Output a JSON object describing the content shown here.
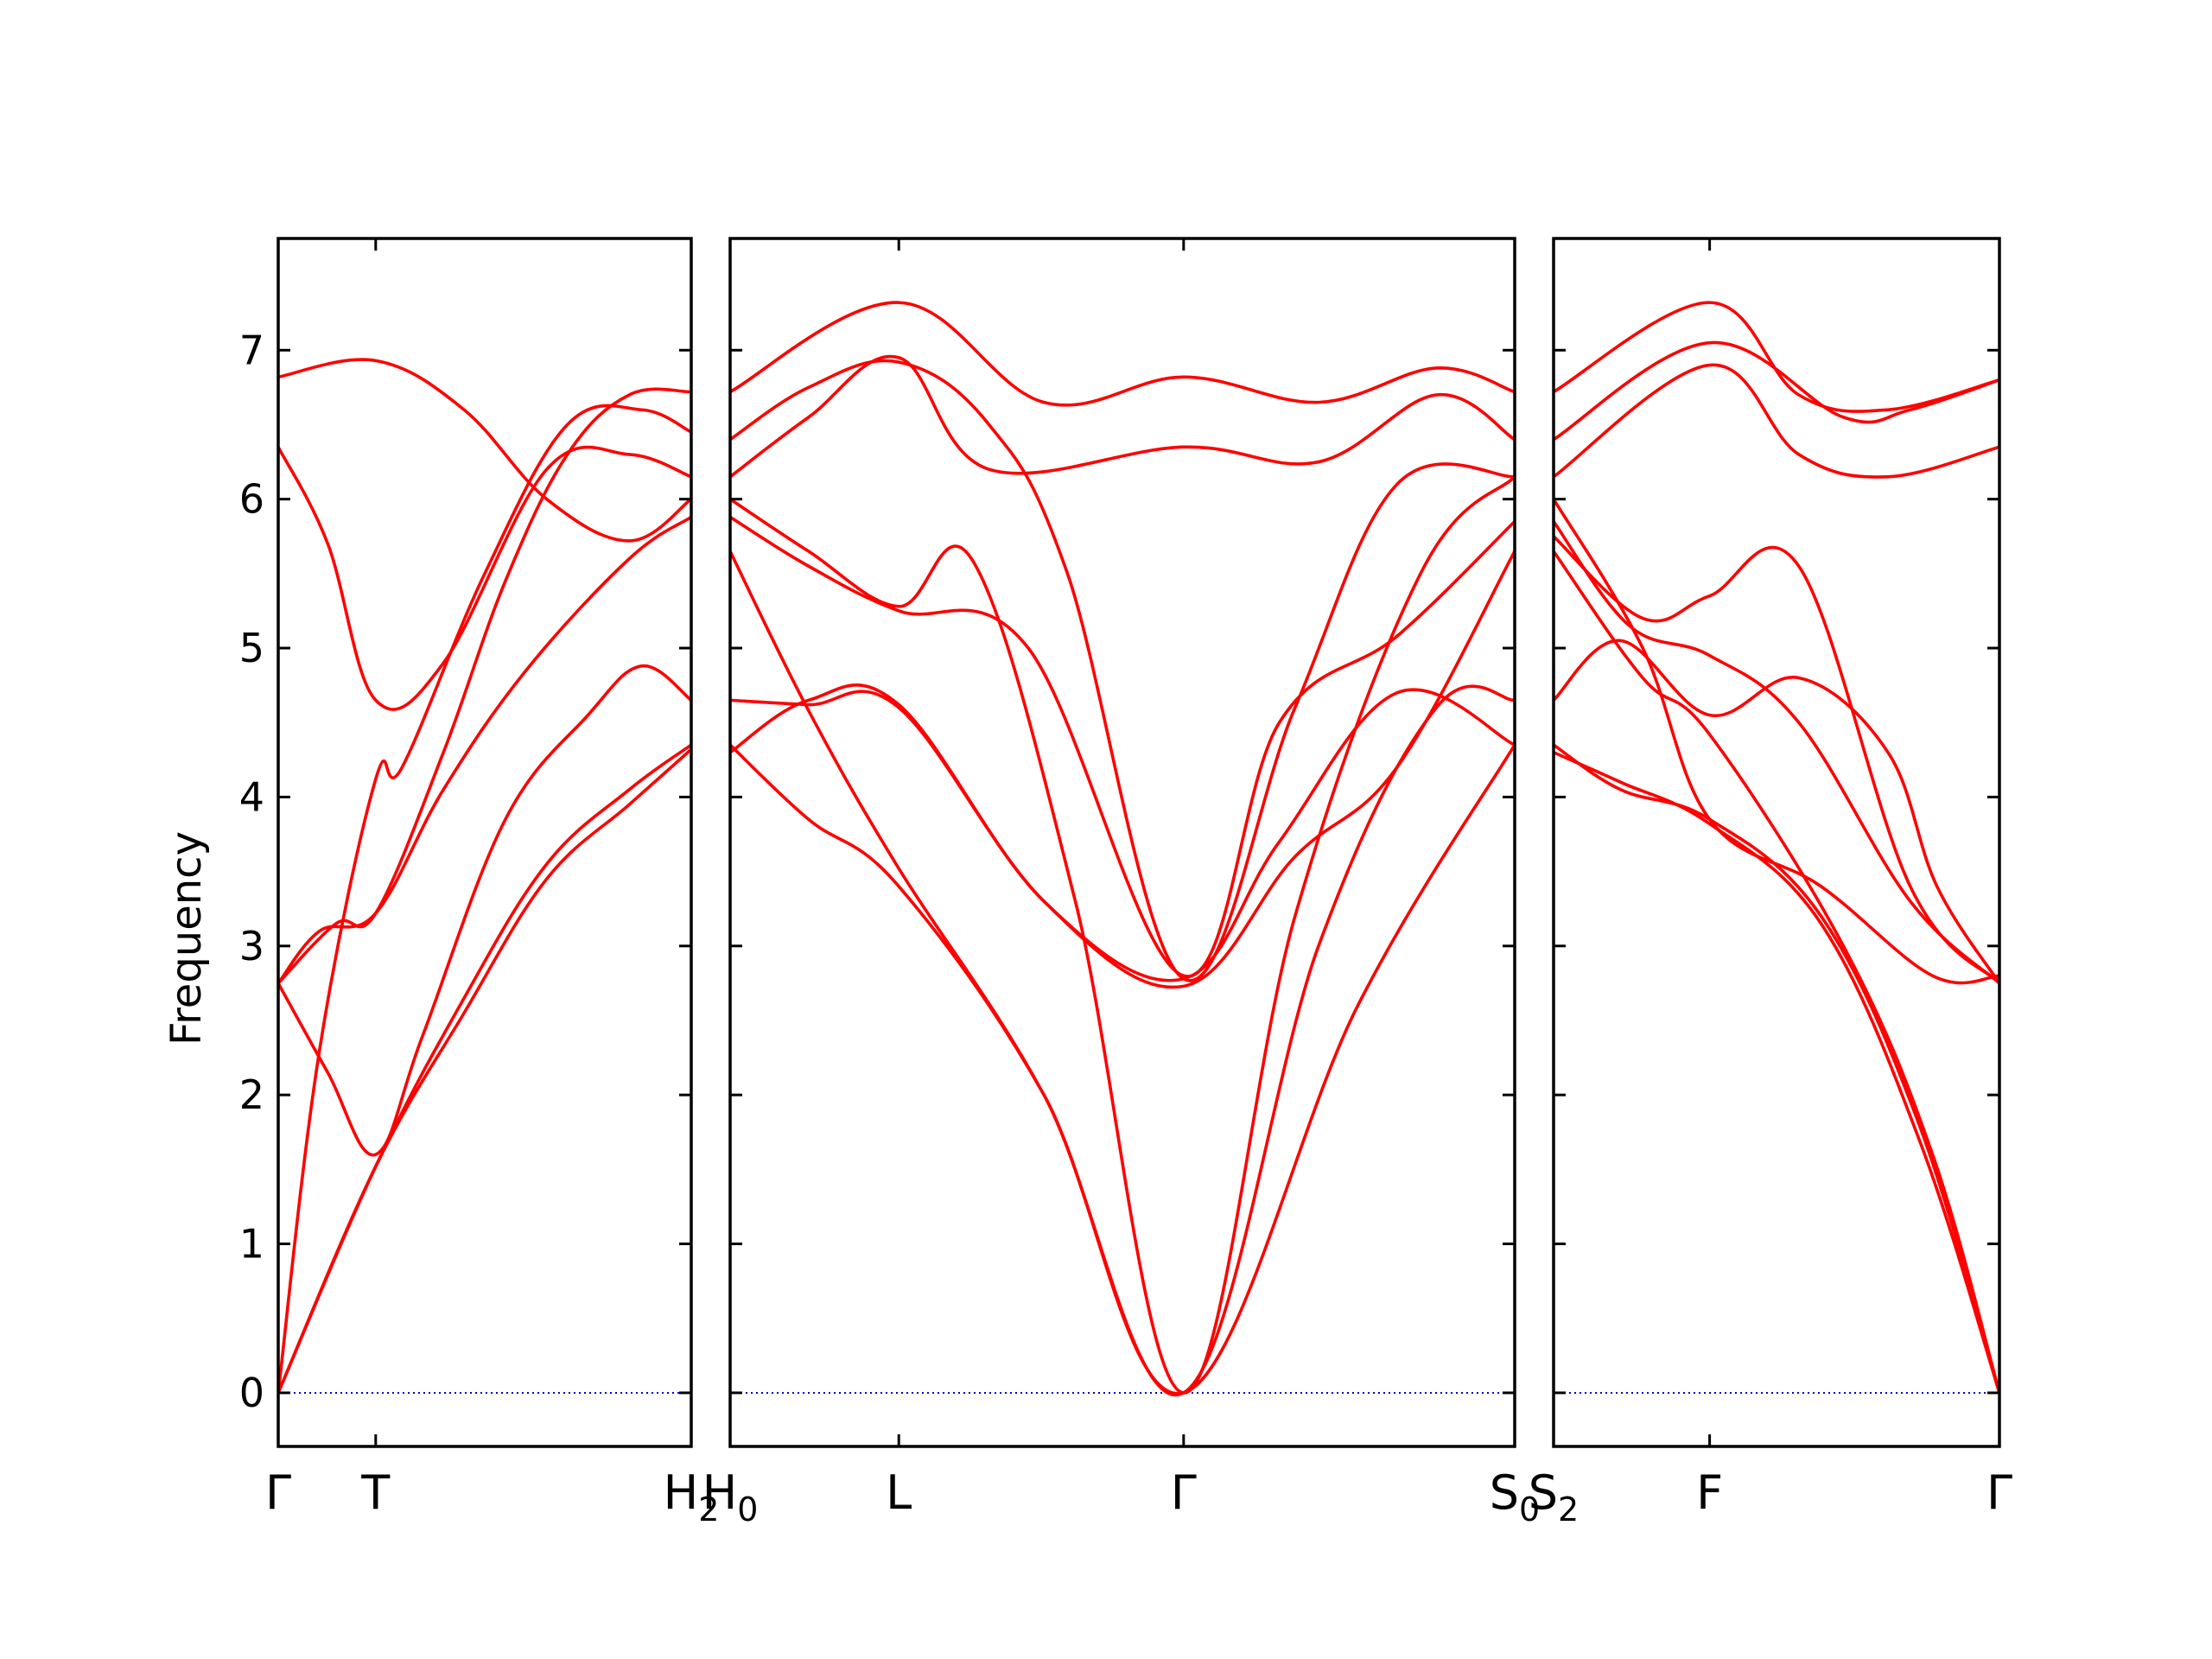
{
  "colors": {
    "band": "#ff0000",
    "zero_line": "#0000cc",
    "axes": "#000000"
  },
  "chart_data": {
    "type": "line",
    "ylabel": "Frequency",
    "ylim": [
      -0.36,
      7.75
    ],
    "yticks": [
      0,
      1,
      2,
      3,
      4,
      5,
      6,
      7
    ],
    "zero_line": true,
    "grid": false,
    "panels": [
      {
        "xrange": [
          0,
          1
        ],
        "labels": [
          {
            "x": 0,
            "text": "Γ",
            "sub": ""
          },
          {
            "x": 0.236,
            "text": "T",
            "sub": ""
          },
          {
            "x": 1,
            "text": "H",
            "sub": "2"
          }
        ],
        "bands": [
          [
            [
              0,
              0
            ],
            [
              0.236,
              1.52
            ],
            [
              0.45,
              2.55
            ],
            [
              0.65,
              3.45
            ],
            [
              0.85,
              3.95
            ],
            [
              1,
              4.32
            ]
          ],
          [
            [
              0,
              0
            ],
            [
              0.236,
              1.52
            ],
            [
              0.45,
              2.65
            ],
            [
              0.65,
              3.55
            ],
            [
              0.85,
              4.05
            ],
            [
              1,
              4.35
            ]
          ],
          [
            [
              0,
              2.75
            ],
            [
              0.12,
              2.15
            ],
            [
              0.236,
              1.6
            ],
            [
              0.35,
              2.4
            ],
            [
              0.55,
              3.85
            ],
            [
              0.75,
              4.55
            ],
            [
              0.88,
              4.88
            ],
            [
              1,
              4.65
            ]
          ],
          [
            [
              0,
              0
            ],
            [
              0.1,
              2.3
            ],
            [
              0.236,
              4.12
            ],
            [
              0.3,
              4.2
            ],
            [
              0.5,
              5.5
            ],
            [
              0.7,
              6.5
            ],
            [
              0.88,
              6.6
            ],
            [
              1,
              6.45
            ]
          ],
          [
            [
              0,
              2.75
            ],
            [
              0.1,
              3.1
            ],
            [
              0.236,
              3.22
            ],
            [
              0.4,
              4.05
            ],
            [
              0.6,
              4.85
            ],
            [
              0.85,
              5.6
            ],
            [
              1,
              5.88
            ]
          ],
          [
            [
              0,
              6.35
            ],
            [
              0.12,
              5.7
            ],
            [
              0.236,
              4.65
            ],
            [
              0.4,
              4.9
            ],
            [
              0.65,
              6.2
            ],
            [
              0.85,
              6.3
            ],
            [
              1,
              6.15
            ]
          ],
          [
            [
              0,
              2.75
            ],
            [
              0.14,
              3.15
            ],
            [
              0.236,
              3.22
            ],
            [
              0.4,
              4.3
            ],
            [
              0.55,
              5.45
            ],
            [
              0.7,
              6.3
            ],
            [
              0.85,
              6.7
            ],
            [
              1,
              6.72
            ]
          ],
          [
            [
              0,
              6.82
            ],
            [
              0.236,
              6.93
            ],
            [
              0.45,
              6.6
            ],
            [
              0.65,
              6.0
            ],
            [
              0.85,
              5.72
            ],
            [
              1,
              6.0
            ]
          ]
        ]
      },
      {
        "xrange": [
          0,
          1
        ],
        "labels": [
          {
            "x": 0,
            "text": "H",
            "sub": "0"
          },
          {
            "x": 0.215,
            "text": "L",
            "sub": ""
          },
          {
            "x": 0.578,
            "text": "Γ",
            "sub": ""
          },
          {
            "x": 1,
            "text": "S",
            "sub": "0"
          }
        ],
        "bands": [
          [
            [
              0,
              4.35
            ],
            [
              0.1,
              3.85
            ],
            [
              0.215,
              3.4
            ],
            [
              0.4,
              2.0
            ],
            [
              0.578,
              0.0
            ],
            [
              0.8,
              2.6
            ],
            [
              1,
              4.35
            ]
          ],
          [
            [
              0,
              4.3
            ],
            [
              0.1,
              4.65
            ],
            [
              0.215,
              4.62
            ],
            [
              0.4,
              3.3
            ],
            [
              0.578,
              2.78
            ],
            [
              0.7,
              3.7
            ],
            [
              0.85,
              4.7
            ],
            [
              1,
              4.35
            ]
          ],
          [
            [
              0,
              5.65
            ],
            [
              0.1,
              4.58
            ],
            [
              0.215,
              3.52
            ],
            [
              0.4,
              2.0
            ],
            [
              0.578,
              0.0
            ],
            [
              0.75,
              3.0
            ],
            [
              0.9,
              4.6
            ],
            [
              1,
              4.65
            ]
          ],
          [
            [
              0,
              4.65
            ],
            [
              0.1,
              4.62
            ],
            [
              0.215,
              4.6
            ],
            [
              0.4,
              3.3
            ],
            [
              0.578,
              2.73
            ],
            [
              0.72,
              3.6
            ],
            [
              0.85,
              4.2
            ],
            [
              1,
              5.65
            ]
          ],
          [
            [
              0,
              5.88
            ],
            [
              0.1,
              5.55
            ],
            [
              0.215,
              5.25
            ],
            [
              0.38,
              5.0
            ],
            [
              0.578,
              2.8
            ],
            [
              0.7,
              4.5
            ],
            [
              0.85,
              5.08
            ],
            [
              1,
              5.85
            ]
          ],
          [
            [
              0,
              6.0
            ],
            [
              0.1,
              5.65
            ],
            [
              0.215,
              5.28
            ],
            [
              0.31,
              5.58
            ],
            [
              0.44,
              3.3
            ],
            [
              0.578,
              0.0
            ],
            [
              0.72,
              3.2
            ],
            [
              0.88,
              5.5
            ],
            [
              1,
              6.15
            ]
          ],
          [
            [
              0,
              6.4
            ],
            [
              0.1,
              6.75
            ],
            [
              0.215,
              6.92
            ],
            [
              0.33,
              6.5
            ],
            [
              0.43,
              5.5
            ],
            [
              0.578,
              2.78
            ],
            [
              0.72,
              4.6
            ],
            [
              0.85,
              6.1
            ],
            [
              1,
              6.15
            ]
          ],
          [
            [
              0,
              6.15
            ],
            [
              0.1,
              6.55
            ],
            [
              0.215,
              6.95
            ],
            [
              0.33,
              6.2
            ],
            [
              0.578,
              6.35
            ],
            [
              0.75,
              6.25
            ],
            [
              0.9,
              6.7
            ],
            [
              1,
              6.4
            ]
          ],
          [
            [
              0,
              6.72
            ],
            [
              0.215,
              7.32
            ],
            [
              0.4,
              6.65
            ],
            [
              0.578,
              6.82
            ],
            [
              0.75,
              6.65
            ],
            [
              0.9,
              6.88
            ],
            [
              1,
              6.72
            ]
          ]
        ]
      },
      {
        "xrange": [
          0,
          1
        ],
        "labels": [
          {
            "x": 0,
            "text": "S",
            "sub": "2"
          },
          {
            "x": 0.35,
            "text": "F",
            "sub": ""
          },
          {
            "x": 1,
            "text": "Γ",
            "sub": ""
          }
        ],
        "bands": [
          [
            [
              0,
              4.35
            ],
            [
              0.15,
              4.05
            ],
            [
              0.35,
              3.85
            ],
            [
              0.6,
              3.2
            ],
            [
              0.82,
              1.8
            ],
            [
              1,
              0.0
            ]
          ],
          [
            [
              0,
              4.3
            ],
            [
              0.15,
              4.1
            ],
            [
              0.35,
              3.82
            ],
            [
              0.6,
              3.15
            ],
            [
              0.82,
              1.7
            ],
            [
              1,
              0.0
            ]
          ],
          [
            [
              0,
              5.65
            ],
            [
              0.2,
              4.8
            ],
            [
              0.35,
              4.42
            ],
            [
              0.65,
              3.0
            ],
            [
              0.85,
              1.6
            ],
            [
              1,
              0.0
            ]
          ],
          [
            [
              0,
              4.65
            ],
            [
              0.15,
              5.05
            ],
            [
              0.35,
              4.55
            ],
            [
              0.55,
              4.8
            ],
            [
              0.75,
              4.3
            ],
            [
              0.86,
              3.4
            ],
            [
              1,
              2.75
            ]
          ],
          [
            [
              0,
              5.85
            ],
            [
              0.17,
              5.15
            ],
            [
              0.35,
              4.95
            ],
            [
              0.55,
              4.5
            ],
            [
              0.8,
              3.3
            ],
            [
              1,
              2.75
            ]
          ],
          [
            [
              0,
              5.75
            ],
            [
              0.2,
              5.2
            ],
            [
              0.35,
              5.35
            ],
            [
              0.55,
              5.55
            ],
            [
              0.8,
              3.4
            ],
            [
              1,
              2.75
            ]
          ],
          [
            [
              0,
              6.0
            ],
            [
              0.2,
              5.0
            ],
            [
              0.35,
              3.85
            ],
            [
              0.6,
              3.4
            ],
            [
              0.85,
              2.8
            ],
            [
              1,
              2.8
            ]
          ],
          [
            [
              0,
              6.15
            ],
            [
              0.35,
              6.9
            ],
            [
              0.55,
              6.3
            ],
            [
              0.75,
              6.15
            ],
            [
              1,
              6.35
            ]
          ],
          [
            [
              0,
              6.4
            ],
            [
              0.35,
              7.05
            ],
            [
              0.65,
              6.55
            ],
            [
              0.8,
              6.6
            ],
            [
              1,
              6.8
            ]
          ],
          [
            [
              0,
              6.72
            ],
            [
              0.35,
              7.32
            ],
            [
              0.55,
              6.7
            ],
            [
              0.75,
              6.6
            ],
            [
              1,
              6.8
            ]
          ]
        ]
      }
    ]
  }
}
